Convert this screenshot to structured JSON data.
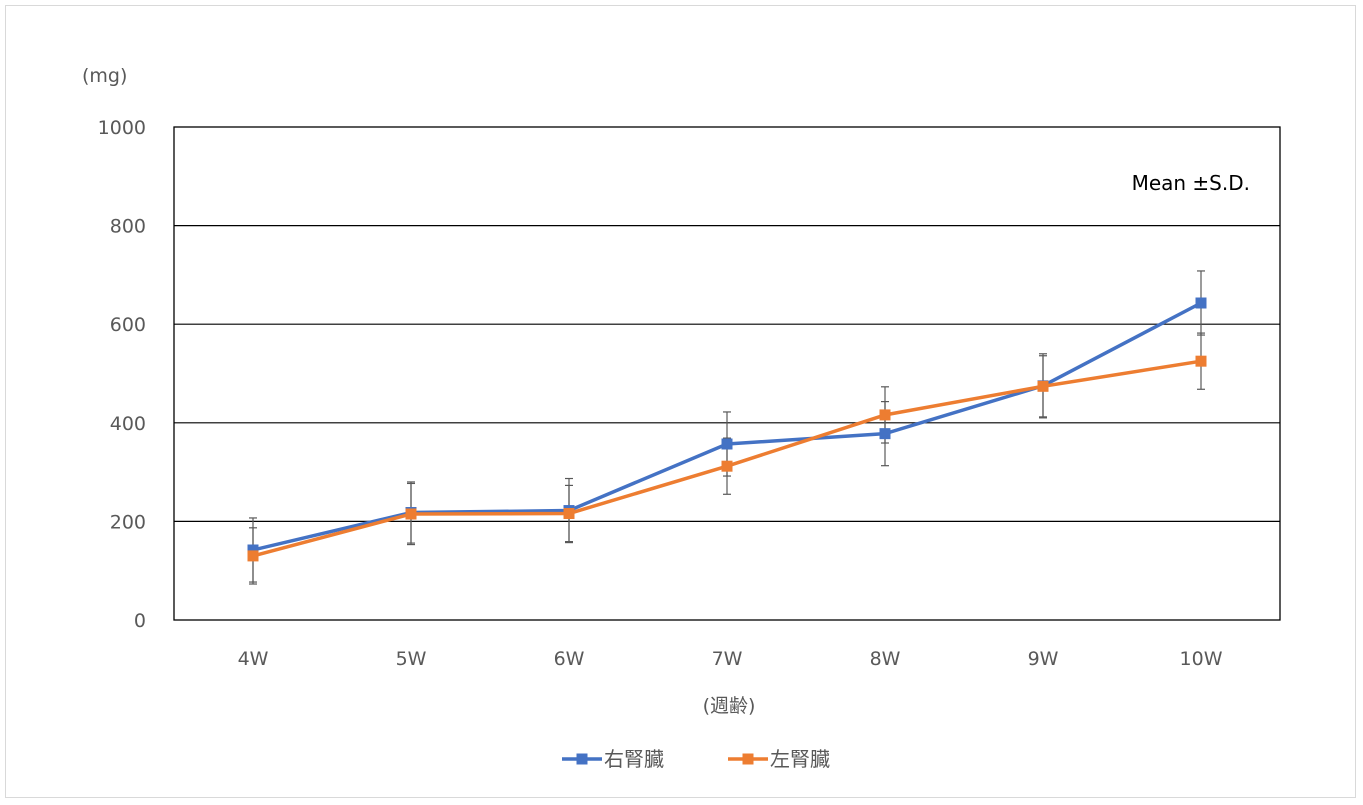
{
  "chart_data": {
    "type": "line",
    "categories": [
      "4W",
      "5W",
      "6W",
      "7W",
      "8W",
      "9W",
      "10W"
    ],
    "series": [
      {
        "name": "右腎臓",
        "color": "#4472C4",
        "values": [
          142,
          218,
          222,
          357,
          378,
          475,
          643
        ],
        "sd": [
          65,
          62,
          65,
          65,
          65,
          65,
          65
        ]
      },
      {
        "name": "左腎臓",
        "color": "#ED7D31",
        "values": [
          130,
          215,
          216,
          312,
          416,
          474,
          525
        ],
        "sd": [
          57,
          62,
          57,
          57,
          57,
          62,
          57
        ]
      }
    ],
    "ylim": [
      0,
      1000
    ],
    "yticks": [
      "0",
      "200",
      "400",
      "600",
      "800",
      "1000"
    ],
    "ytick_values": [
      0,
      200,
      400,
      600,
      800,
      1000
    ],
    "ylabel": "(mg)",
    "xlabel": "(週齢)",
    "annotation": "Mean ±S.D.",
    "grid": true,
    "legend_position": "bottom"
  }
}
